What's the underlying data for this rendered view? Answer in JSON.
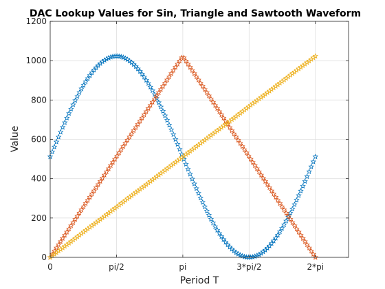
{
  "chart_data": {
    "type": "scatter",
    "title": "DAC Lookup Values for Sin, Triangle and Sawtooth Waveform",
    "xlabel": "Period T",
    "ylabel": "Value",
    "xlim": [
      0,
      4.5
    ],
    "ylim": [
      0,
      1200
    ],
    "xticks": [
      0,
      1,
      2,
      3,
      4
    ],
    "xtick_labels": [
      "0",
      "pi/2",
      "pi",
      "3*pi/2",
      "2*pi"
    ],
    "yticks": [
      0,
      200,
      400,
      600,
      800,
      1000,
      1200
    ],
    "grid": true,
    "marker": "star",
    "n_points_per_series": 128,
    "series": [
      {
        "shape": "sine",
        "min": 0,
        "max": 1023,
        "start": 512,
        "x_range": [
          0,
          4
        ],
        "color": "#0072bd"
      },
      {
        "shape": "triangle",
        "min": 0,
        "max": 1023,
        "start": 0,
        "peak_x": 2,
        "x_range": [
          0,
          4
        ],
        "color": "#d95319"
      },
      {
        "shape": "sawtooth",
        "min": 0,
        "max": 1023,
        "start": 0,
        "x_range": [
          0,
          4
        ],
        "color": "#edb120"
      }
    ]
  }
}
